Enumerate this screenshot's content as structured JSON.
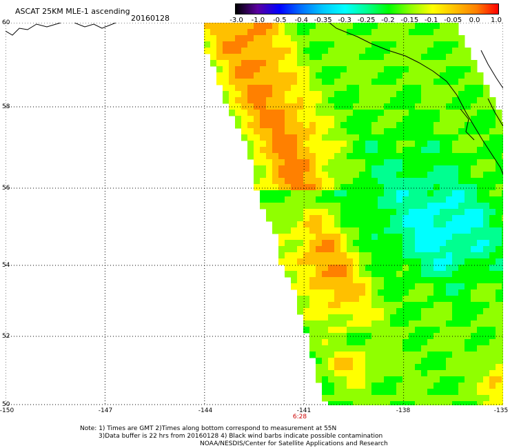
{
  "title": "ASCAT 25KM MLE-1 ascending",
  "date": "20160128",
  "colorbar": {
    "labels": [
      "-3.0",
      "-1.0",
      "-0.5",
      "-0.4",
      "-0.35",
      "-0.3",
      "-0.25",
      "-0.2",
      "-0.15",
      "-0.1",
      "-0.05",
      "0.0",
      "1.0"
    ],
    "colors": [
      "#000000",
      "#5a00a0",
      "#0000ff",
      "#0070ff",
      "#00c8ff",
      "#00ffff",
      "#00ff90",
      "#00ff00",
      "#90ff00",
      "#ffff00",
      "#ffc000",
      "#ff8000",
      "#ff0000"
    ]
  },
  "map": {
    "lat_labels": [
      "60",
      "58",
      "56",
      "54",
      "52",
      "50"
    ],
    "lon_labels": [
      "-150",
      "-147",
      "-144",
      "-141",
      "-138",
      "-135"
    ],
    "time_label": "6:28",
    "lat_range": [
      50,
      60
    ],
    "lon_range": [
      -150,
      -135
    ]
  },
  "notes": {
    "line1": "Note: 1) Times are GMT 2)Times along bottom correspond to measurement at 55N",
    "line2": "3)Data buffer is 22 hrs from 20160128 4) Black wind barbs indicate possible contamination",
    "line3": "NOAA/NESDIS/Center for Satellite Applications and Research"
  }
}
